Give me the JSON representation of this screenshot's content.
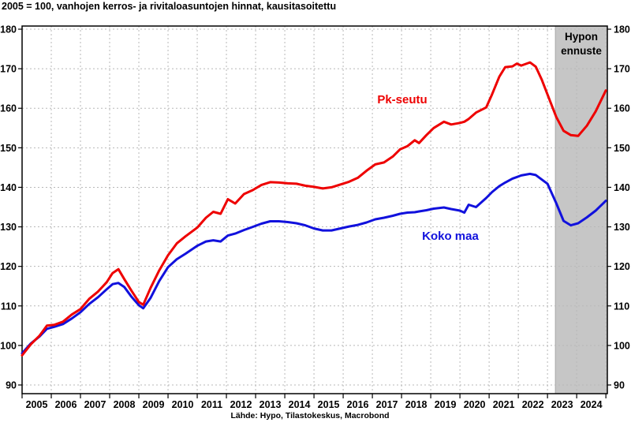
{
  "footer": {
    "source": "Lähde: Hypo, Tilastokeskus, Macrobond"
  },
  "chart_data": {
    "type": "line",
    "title": "2005 = 100, vanhojen kerros- ja rivitaloasuntojen hinnat, kausitasoitettu",
    "x_domain": [
      2005,
      2025.05
    ],
    "ylim": [
      90,
      180
    ],
    "y_ticks": [
      90,
      100,
      110,
      120,
      130,
      140,
      150,
      160,
      170,
      180
    ],
    "y_axis_sides": [
      "left",
      "right"
    ],
    "x_tick_labels": [
      "2005",
      "2006",
      "2007",
      "2008",
      "2009",
      "2010",
      "2011",
      "2012",
      "2013",
      "2014",
      "2015",
      "2016",
      "2017",
      "2018",
      "2019",
      "2020",
      "2021",
      "2022",
      "2023",
      "2024"
    ],
    "grid": true,
    "grid_color": "#b8b8b8",
    "forecast_band": {
      "label": "Hypon ennuste",
      "label_lines": [
        "Hypon",
        "ennuste"
      ],
      "x_start": 2023.27,
      "x_end": 2025.05,
      "color": "#c6c6c6"
    },
    "x": [
      2005.0,
      2005.3,
      2005.6,
      2005.85,
      2006.1,
      2006.4,
      2006.7,
      2007.0,
      2007.3,
      2007.6,
      2007.9,
      2008.1,
      2008.3,
      2008.5,
      2008.75,
      2009.0,
      2009.15,
      2009.4,
      2009.7,
      2010.0,
      2010.3,
      2010.6,
      2011.0,
      2011.3,
      2011.55,
      2011.8,
      2012.05,
      2012.3,
      2012.6,
      2012.9,
      2013.2,
      2013.5,
      2013.8,
      2014.1,
      2014.4,
      2014.7,
      2015.0,
      2015.3,
      2015.6,
      2015.9,
      2016.2,
      2016.5,
      2016.8,
      2017.1,
      2017.4,
      2017.7,
      2017.95,
      2018.2,
      2018.45,
      2018.6,
      2018.85,
      2019.1,
      2019.45,
      2019.7,
      2020.0,
      2020.15,
      2020.3,
      2020.55,
      2020.9,
      2021.1,
      2021.35,
      2021.55,
      2021.8,
      2021.95,
      2022.1,
      2022.4,
      2022.6,
      2022.8,
      2023.0,
      2023.3,
      2023.55,
      2023.8,
      2024.05,
      2024.35,
      2024.65,
      2025.0
    ],
    "series": [
      {
        "name": "Pk-seutu",
        "color": "#ee0000",
        "values": [
          97.5,
          100.3,
          102.5,
          105.0,
          105.2,
          106.0,
          107.8,
          109.2,
          111.8,
          113.6,
          116.0,
          118.3,
          119.3,
          116.8,
          113.8,
          111.0,
          110.3,
          114.5,
          119.0,
          122.8,
          125.8,
          127.6,
          129.8,
          132.3,
          133.8,
          133.3,
          137.0,
          135.9,
          138.3,
          139.3,
          140.6,
          141.3,
          141.2,
          141.0,
          140.9,
          140.4,
          140.1,
          139.7,
          140.0,
          140.7,
          141.4,
          142.4,
          144.2,
          145.8,
          146.3,
          147.8,
          149.6,
          150.4,
          151.9,
          151.2,
          153.2,
          155.0,
          156.6,
          155.9,
          156.3,
          156.6,
          157.3,
          158.9,
          160.2,
          163.5,
          168.0,
          170.4,
          170.6,
          171.3,
          170.8,
          171.6,
          170.5,
          167.3,
          163.5,
          157.8,
          154.3,
          153.2,
          153.0,
          155.6,
          159.2,
          164.5
        ]
      },
      {
        "name": "Koko maa",
        "color": "#1111dd",
        "values": [
          98.0,
          100.5,
          102.3,
          104.2,
          104.7,
          105.4,
          106.8,
          108.4,
          110.5,
          112.2,
          114.2,
          115.5,
          115.8,
          114.8,
          112.3,
          110.2,
          109.4,
          112.0,
          116.3,
          119.8,
          121.8,
          123.2,
          125.2,
          126.3,
          126.6,
          126.3,
          127.8,
          128.3,
          129.2,
          130.0,
          130.8,
          131.4,
          131.4,
          131.2,
          130.9,
          130.4,
          129.6,
          129.1,
          129.1,
          129.6,
          130.1,
          130.5,
          131.1,
          131.9,
          132.3,
          132.8,
          133.3,
          133.6,
          133.7,
          133.9,
          134.2,
          134.6,
          134.9,
          134.5,
          134.1,
          133.6,
          135.6,
          135.0,
          137.3,
          138.8,
          140.3,
          141.2,
          142.2,
          142.6,
          143.0,
          143.4,
          143.1,
          142.0,
          140.9,
          136.0,
          131.5,
          130.4,
          130.9,
          132.4,
          134.1,
          136.6
        ]
      }
    ],
    "legend_position": "inline-labels"
  }
}
